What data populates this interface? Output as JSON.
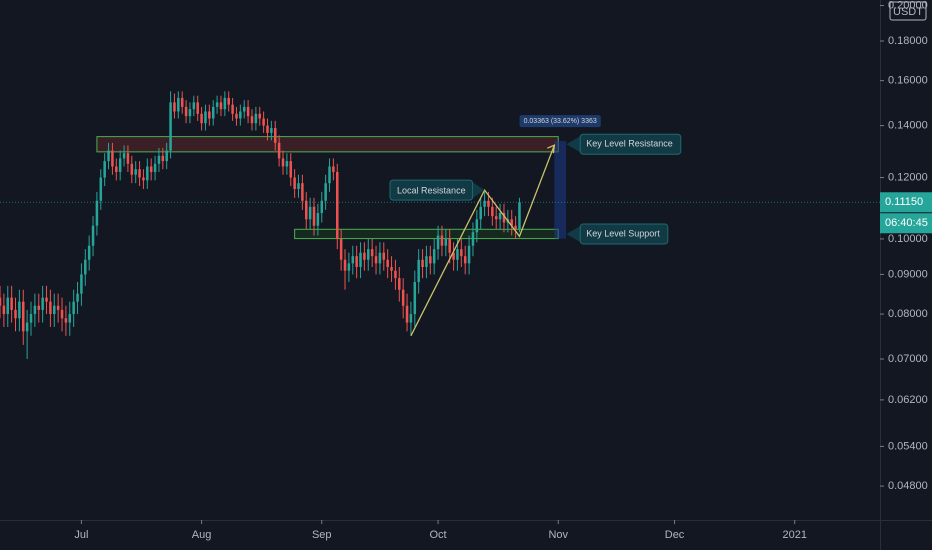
{
  "chart_data": {
    "type": "candlestick",
    "currency": "USDT",
    "countdown": "06:40:45",
    "last_price": {
      "value": 0.1115,
      "label": "0.11150"
    },
    "up_color": "#26a69a",
    "down_color": "#ef5350",
    "log_scale": true,
    "ylim": [
      0.0434,
      0.2033
    ],
    "yticks": [
      {
        "value": 0.048,
        "label": "0.04800"
      },
      {
        "value": 0.054,
        "label": "0.05400"
      },
      {
        "value": 0.062,
        "label": "0.06200"
      },
      {
        "value": 0.07,
        "label": "0.07000"
      },
      {
        "value": 0.08,
        "label": "0.08000"
      },
      {
        "value": 0.09,
        "label": "0.09000"
      },
      {
        "value": 0.1,
        "label": "0.10000"
      },
      {
        "value": 0.12,
        "label": "0.12000"
      },
      {
        "value": 0.14,
        "label": "0.14000"
      },
      {
        "value": 0.16,
        "label": "0.16000"
      },
      {
        "value": 0.18,
        "label": "0.18000"
      },
      {
        "value": 0.2,
        "label": "0.20000"
      }
    ],
    "xlim": [
      "2020-06-10",
      "2021-01-23"
    ],
    "xticks": [
      {
        "value": "2020-07-01",
        "label": "Jul"
      },
      {
        "value": "2020-08-01",
        "label": "Aug"
      },
      {
        "value": "2020-09-01",
        "label": "Sep"
      },
      {
        "value": "2020-10-01",
        "label": "Oct"
      },
      {
        "value": "2020-11-01",
        "label": "Nov"
      },
      {
        "value": "2020-12-01",
        "label": "Dec"
      },
      {
        "value": "2021-01-01",
        "label": "2021"
      }
    ],
    "x": [
      "2020-06-10",
      "2020-06-11",
      "2020-06-12",
      "2020-06-13",
      "2020-06-14",
      "2020-06-15",
      "2020-06-16",
      "2020-06-17",
      "2020-06-18",
      "2020-06-19",
      "2020-06-20",
      "2020-06-21",
      "2020-06-22",
      "2020-06-23",
      "2020-06-24",
      "2020-06-25",
      "2020-06-26",
      "2020-06-27",
      "2020-06-28",
      "2020-06-29",
      "2020-06-30",
      "2020-07-01",
      "2020-07-02",
      "2020-07-03",
      "2020-07-04",
      "2020-07-05",
      "2020-07-06",
      "2020-07-07",
      "2020-07-08",
      "2020-07-09",
      "2020-07-10",
      "2020-07-11",
      "2020-07-12",
      "2020-07-13",
      "2020-07-14",
      "2020-07-15",
      "2020-07-16",
      "2020-07-17",
      "2020-07-18",
      "2020-07-19",
      "2020-07-20",
      "2020-07-21",
      "2020-07-22",
      "2020-07-23",
      "2020-07-24",
      "2020-07-25",
      "2020-07-26",
      "2020-07-27",
      "2020-07-28",
      "2020-07-29",
      "2020-07-30",
      "2020-07-31",
      "2020-08-01",
      "2020-08-02",
      "2020-08-03",
      "2020-08-04",
      "2020-08-05",
      "2020-08-06",
      "2020-08-07",
      "2020-08-08",
      "2020-08-09",
      "2020-08-10",
      "2020-08-11",
      "2020-08-12",
      "2020-08-13",
      "2020-08-14",
      "2020-08-15",
      "2020-08-16",
      "2020-08-17",
      "2020-08-18",
      "2020-08-19",
      "2020-08-20",
      "2020-08-21",
      "2020-08-22",
      "2020-08-23",
      "2020-08-24",
      "2020-08-25",
      "2020-08-26",
      "2020-08-27",
      "2020-08-28",
      "2020-08-29",
      "2020-08-30",
      "2020-08-31",
      "2020-09-01",
      "2020-09-02",
      "2020-09-03",
      "2020-09-04",
      "2020-09-05",
      "2020-09-06",
      "2020-09-07",
      "2020-09-08",
      "2020-09-09",
      "2020-09-10",
      "2020-09-11",
      "2020-09-12",
      "2020-09-13",
      "2020-09-14",
      "2020-09-15",
      "2020-09-16",
      "2020-09-17",
      "2020-09-18",
      "2020-09-19",
      "2020-09-20",
      "2020-09-21",
      "2020-09-22",
      "2020-09-23",
      "2020-09-24",
      "2020-09-25",
      "2020-09-26",
      "2020-09-27",
      "2020-09-28",
      "2020-09-29",
      "2020-09-30",
      "2020-10-01",
      "2020-10-02",
      "2020-10-03",
      "2020-10-04",
      "2020-10-05",
      "2020-10-06",
      "2020-10-07",
      "2020-10-08",
      "2020-10-09",
      "2020-10-10",
      "2020-10-11",
      "2020-10-12",
      "2020-10-13",
      "2020-10-14",
      "2020-10-15",
      "2020-10-16",
      "2020-10-17",
      "2020-10-18",
      "2020-10-19",
      "2020-10-20",
      "2020-10-21",
      "2020-10-22"
    ],
    "open": [
      0.084,
      0.082,
      0.08,
      0.084,
      0.081,
      0.079,
      0.083,
      0.076,
      0.078,
      0.08,
      0.082,
      0.081,
      0.084,
      0.083,
      0.08,
      0.082,
      0.081,
      0.079,
      0.078,
      0.08,
      0.083,
      0.085,
      0.09,
      0.094,
      0.098,
      0.104,
      0.112,
      0.12,
      0.126,
      0.13,
      0.124,
      0.122,
      0.127,
      0.129,
      0.125,
      0.121,
      0.123,
      0.12,
      0.119,
      0.124,
      0.122,
      0.125,
      0.128,
      0.126,
      0.13,
      0.15,
      0.146,
      0.152,
      0.148,
      0.144,
      0.147,
      0.15,
      0.145,
      0.141,
      0.146,
      0.143,
      0.148,
      0.15,
      0.147,
      0.152,
      0.149,
      0.145,
      0.143,
      0.146,
      0.148,
      0.144,
      0.141,
      0.145,
      0.143,
      0.14,
      0.137,
      0.139,
      0.133,
      0.127,
      0.124,
      0.126,
      0.12,
      0.116,
      0.118,
      0.112,
      0.106,
      0.11,
      0.104,
      0.108,
      0.112,
      0.118,
      0.124,
      0.122,
      0.1,
      0.094,
      0.091,
      0.093,
      0.095,
      0.092,
      0.096,
      0.094,
      0.097,
      0.095,
      0.093,
      0.096,
      0.094,
      0.092,
      0.091,
      0.089,
      0.086,
      0.082,
      0.078,
      0.08,
      0.088,
      0.094,
      0.092,
      0.095,
      0.093,
      0.097,
      0.101,
      0.098,
      0.1,
      0.096,
      0.094,
      0.097,
      0.095,
      0.093,
      0.098,
      0.102,
      0.106,
      0.11,
      0.112,
      0.11,
      0.107,
      0.106,
      0.108,
      0.105,
      0.106,
      0.104,
      0.103
    ],
    "high": [
      0.087,
      0.085,
      0.087,
      0.087,
      0.084,
      0.086,
      0.086,
      0.081,
      0.083,
      0.085,
      0.085,
      0.087,
      0.087,
      0.086,
      0.085,
      0.085,
      0.084,
      0.082,
      0.083,
      0.086,
      0.088,
      0.093,
      0.097,
      0.101,
      0.107,
      0.115,
      0.123,
      0.129,
      0.133,
      0.133,
      0.127,
      0.13,
      0.132,
      0.132,
      0.128,
      0.126,
      0.126,
      0.123,
      0.127,
      0.127,
      0.128,
      0.131,
      0.131,
      0.133,
      0.155,
      0.154,
      0.155,
      0.155,
      0.151,
      0.15,
      0.153,
      0.153,
      0.148,
      0.149,
      0.149,
      0.151,
      0.153,
      0.153,
      0.155,
      0.155,
      0.152,
      0.148,
      0.149,
      0.151,
      0.151,
      0.147,
      0.148,
      0.148,
      0.146,
      0.143,
      0.142,
      0.142,
      0.136,
      0.13,
      0.129,
      0.129,
      0.123,
      0.121,
      0.121,
      0.115,
      0.113,
      0.113,
      0.111,
      0.115,
      0.121,
      0.127,
      0.127,
      0.125,
      0.103,
      0.097,
      0.096,
      0.098,
      0.098,
      0.099,
      0.099,
      0.1,
      0.1,
      0.098,
      0.099,
      0.099,
      0.097,
      0.095,
      0.094,
      0.092,
      0.089,
      0.085,
      0.083,
      0.091,
      0.097,
      0.097,
      0.098,
      0.098,
      0.1,
      0.104,
      0.104,
      0.103,
      0.103,
      0.099,
      0.1,
      0.1,
      0.098,
      0.101,
      0.105,
      0.109,
      0.113,
      0.115,
      0.115,
      0.113,
      0.11,
      0.111,
      0.111,
      0.109,
      0.109,
      0.107,
      0.113
    ],
    "low": [
      0.079,
      0.077,
      0.077,
      0.078,
      0.076,
      0.076,
      0.073,
      0.07,
      0.075,
      0.077,
      0.078,
      0.078,
      0.08,
      0.077,
      0.077,
      0.078,
      0.076,
      0.075,
      0.075,
      0.077,
      0.08,
      0.082,
      0.087,
      0.091,
      0.095,
      0.101,
      0.109,
      0.117,
      0.123,
      0.121,
      0.119,
      0.119,
      0.124,
      0.122,
      0.118,
      0.118,
      0.117,
      0.116,
      0.116,
      0.119,
      0.119,
      0.122,
      0.123,
      0.123,
      0.127,
      0.143,
      0.143,
      0.145,
      0.141,
      0.141,
      0.144,
      0.142,
      0.138,
      0.138,
      0.14,
      0.14,
      0.145,
      0.144,
      0.144,
      0.146,
      0.142,
      0.14,
      0.14,
      0.143,
      0.141,
      0.138,
      0.138,
      0.14,
      0.137,
      0.134,
      0.134,
      0.13,
      0.124,
      0.121,
      0.121,
      0.117,
      0.113,
      0.113,
      0.109,
      0.103,
      0.103,
      0.101,
      0.101,
      0.105,
      0.109,
      0.115,
      0.119,
      0.097,
      0.091,
      0.086,
      0.088,
      0.09,
      0.089,
      0.089,
      0.091,
      0.091,
      0.092,
      0.09,
      0.09,
      0.091,
      0.089,
      0.088,
      0.086,
      0.083,
      0.079,
      0.076,
      0.075,
      0.077,
      0.085,
      0.089,
      0.089,
      0.09,
      0.09,
      0.094,
      0.095,
      0.095,
      0.093,
      0.091,
      0.091,
      0.092,
      0.09,
      0.09,
      0.095,
      0.099,
      0.103,
      0.107,
      0.107,
      0.104,
      0.103,
      0.103,
      0.102,
      0.102,
      0.101,
      0.1,
      0.102
    ],
    "close": [
      0.082,
      0.08,
      0.084,
      0.081,
      0.079,
      0.083,
      0.076,
      0.078,
      0.08,
      0.082,
      0.081,
      0.084,
      0.083,
      0.08,
      0.082,
      0.081,
      0.079,
      0.078,
      0.08,
      0.083,
      0.085,
      0.09,
      0.094,
      0.098,
      0.104,
      0.112,
      0.12,
      0.126,
      0.13,
      0.124,
      0.122,
      0.127,
      0.129,
      0.125,
      0.121,
      0.123,
      0.12,
      0.119,
      0.124,
      0.122,
      0.125,
      0.128,
      0.126,
      0.13,
      0.15,
      0.146,
      0.152,
      0.148,
      0.144,
      0.147,
      0.15,
      0.145,
      0.141,
      0.146,
      0.143,
      0.148,
      0.15,
      0.147,
      0.152,
      0.149,
      0.145,
      0.143,
      0.146,
      0.148,
      0.144,
      0.141,
      0.145,
      0.143,
      0.14,
      0.137,
      0.139,
      0.133,
      0.127,
      0.124,
      0.126,
      0.12,
      0.116,
      0.118,
      0.112,
      0.106,
      0.11,
      0.104,
      0.108,
      0.112,
      0.118,
      0.124,
      0.122,
      0.1,
      0.094,
      0.091,
      0.093,
      0.095,
      0.092,
      0.096,
      0.094,
      0.097,
      0.095,
      0.093,
      0.096,
      0.094,
      0.092,
      0.091,
      0.089,
      0.086,
      0.082,
      0.078,
      0.08,
      0.088,
      0.094,
      0.092,
      0.095,
      0.093,
      0.097,
      0.101,
      0.098,
      0.1,
      0.096,
      0.094,
      0.097,
      0.095,
      0.093,
      0.098,
      0.102,
      0.106,
      0.11,
      0.112,
      0.11,
      0.107,
      0.106,
      0.108,
      0.105,
      0.106,
      0.104,
      0.103,
      0.1115
    ],
    "zones": [
      {
        "label": "Key Level Resistance",
        "start": "2020-07-05",
        "end": "2020-11-01",
        "low": 0.1295,
        "high": 0.1355,
        "fill": "#3a1f26",
        "border": "#4caf50"
      },
      {
        "label": "Key Level Support",
        "start": "2020-08-25",
        "end": "2020-11-01",
        "low": 0.1001,
        "high": 0.1029,
        "fill": "#16291f",
        "border": "#4caf50"
      }
    ],
    "path": {
      "color": "#c9c36a",
      "x": [
        "2020-09-24",
        "2020-10-13",
        "2020-10-22",
        "2020-10-31"
      ],
      "y": [
        0.075,
        0.1156,
        0.1008,
        0.1321
      ]
    },
    "callout": {
      "label": "Local Resistance",
      "x": "2020-10-13",
      "y": 0.1156
    },
    "measure": {
      "label": "0.03363 (33.62%) 3363",
      "start": "2020-10-31",
      "end": "2020-11-03",
      "from": 0.1001,
      "to": 0.1337
    }
  }
}
